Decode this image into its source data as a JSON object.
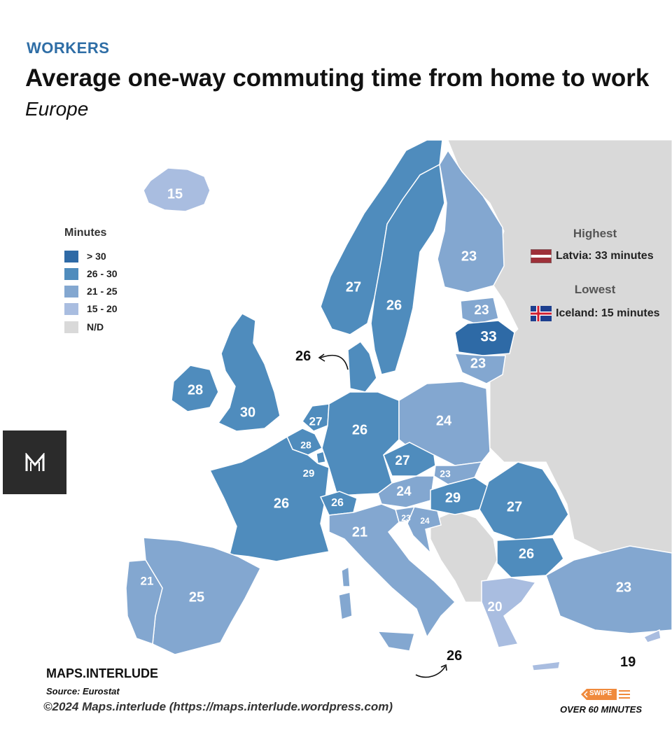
{
  "header": {
    "category": "WORKERS",
    "title": "Average one-way commuting time from home to work",
    "subtitle": "Europe"
  },
  "legend": {
    "title": "Minutes",
    "items": [
      {
        "label": "> 30",
        "color": "#2e6aa6"
      },
      {
        "label": "26 - 30",
        "color": "#4f8cbd"
      },
      {
        "label": "21 - 25",
        "color": "#83a7d0"
      },
      {
        "label": "15 - 20",
        "color": "#a9bde0"
      },
      {
        "label": "N/D",
        "color": "#d9d9d9"
      }
    ]
  },
  "highlights": {
    "highest_heading": "Highest",
    "highest_text": "Latvia: 33 minutes",
    "lowest_heading": "Lowest",
    "lowest_text": "Iceland: 15 minutes"
  },
  "map_data": {
    "countries": [
      {
        "name": "Iceland",
        "value": "15"
      },
      {
        "name": "Norway",
        "value": "27"
      },
      {
        "name": "Sweden",
        "value": "26"
      },
      {
        "name": "Finland",
        "value": "23"
      },
      {
        "name": "Estonia",
        "value": "23"
      },
      {
        "name": "Latvia",
        "value": "33"
      },
      {
        "name": "Lithuania",
        "value": "23"
      },
      {
        "name": "Ireland",
        "value": "28"
      },
      {
        "name": "United Kingdom",
        "value": "30"
      },
      {
        "name": "Netherlands",
        "value": "27"
      },
      {
        "name": "Belgium",
        "value": "28"
      },
      {
        "name": "Luxembourg",
        "value": "29"
      },
      {
        "name": "Germany",
        "value": "26"
      },
      {
        "name": "Poland",
        "value": "24"
      },
      {
        "name": "Czechia",
        "value": "27"
      },
      {
        "name": "Slovakia",
        "value": "23"
      },
      {
        "name": "Austria",
        "value": "24"
      },
      {
        "name": "Hungary",
        "value": "29"
      },
      {
        "name": "Romania",
        "value": "27"
      },
      {
        "name": "Bulgaria",
        "value": "26"
      },
      {
        "name": "France",
        "value": "26"
      },
      {
        "name": "Switzerland",
        "value": "26"
      },
      {
        "name": "Slovenia",
        "value": "23"
      },
      {
        "name": "Croatia",
        "value": "24"
      },
      {
        "name": "Italy",
        "value": "21"
      },
      {
        "name": "Spain",
        "value": "25"
      },
      {
        "name": "Portugal",
        "value": "21"
      },
      {
        "name": "Greece",
        "value": "20"
      },
      {
        "name": "Turkey",
        "value": "23"
      }
    ],
    "callouts": [
      {
        "name": "Denmark",
        "value": "26"
      },
      {
        "name": "Malta",
        "value": "26"
      },
      {
        "name": "Cyprus",
        "value": "19"
      }
    ]
  },
  "footer": {
    "brand": "MAPS.INTERLUDE",
    "source": "Source: Eurostat",
    "copyright": "©2024 Maps.interlude (https://maps.interlude.wordpress.com)",
    "swipe_label": "SWIPE",
    "teaser": "OVER 60 MINUTES"
  }
}
